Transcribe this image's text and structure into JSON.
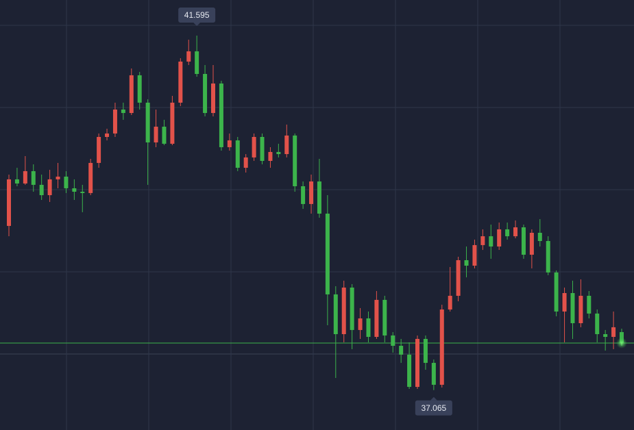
{
  "chart_data": {
    "type": "candlestick",
    "up_color": "#e2524a",
    "down_color": "#3cb44b",
    "ylim": [
      36.555,
      42.05
    ],
    "max_marker": 41.595,
    "min_marker": 37.065,
    "current_price": 37.666,
    "open": [
      39.163,
      39.758,
      39.705,
      39.863,
      39.688,
      39.556,
      39.758,
      39.793,
      39.644,
      39.6,
      39.583,
      39.968,
      40.3,
      40.344,
      40.65,
      40.606,
      41.088,
      40.738,
      40.23,
      40.431,
      40.213,
      40.738,
      41.263,
      41.394,
      41.105,
      40.606,
      40.983,
      40.169,
      40.256,
      39.906,
      40.038,
      40.3,
      39.994,
      40.108,
      40.081,
      40.318,
      39.67,
      39.443,
      39.731,
      39.32,
      38.288,
      37.78,
      38.375,
      37.833,
      37.981,
      37.745,
      38.218,
      37.763,
      37.631,
      37.518,
      37.106,
      37.719,
      37.413,
      37.133,
      38.095,
      38.27,
      38.725,
      38.655,
      38.918,
      39.031,
      38.9,
      39.119,
      39.031,
      39.145,
      38.795,
      39.075,
      38.97,
      38.568,
      38.069,
      38.305,
      37.92,
      38.27,
      38.043,
      37.78,
      37.745,
      37.806
    ],
    "high": [
      39.819,
      39.906,
      40.055,
      39.95,
      39.819,
      39.88,
      39.968,
      39.863,
      39.758,
      39.688,
      40.02,
      40.344,
      40.405,
      40.738,
      40.738,
      41.175,
      41.131,
      40.781,
      40.65,
      40.519,
      40.825,
      41.306,
      41.543,
      41.595,
      41.219,
      41.219,
      41.018,
      40.344,
      40.3,
      40.081,
      40.344,
      40.344,
      40.169,
      40.213,
      40.458,
      40.344,
      39.731,
      39.819,
      40.02,
      39.556,
      38.393,
      38.463,
      38.419,
      38.113,
      38.069,
      38.331,
      38.27,
      37.806,
      37.719,
      37.675,
      37.763,
      37.763,
      37.456,
      38.156,
      38.638,
      38.769,
      38.9,
      38.988,
      39.119,
      39.18,
      39.206,
      39.206,
      39.233,
      39.18,
      39.119,
      39.25,
      39.031,
      38.594,
      38.375,
      38.463,
      38.48,
      38.331,
      38.095,
      37.833,
      38.069,
      37.85
    ],
    "low": [
      39.031,
      39.67,
      39.688,
      39.6,
      39.495,
      39.469,
      39.644,
      39.583,
      39.495,
      39.338,
      39.556,
      39.906,
      40.256,
      40.3,
      40.519,
      40.58,
      40.65,
      39.688,
      40.169,
      40.195,
      40.195,
      40.694,
      41.219,
      41.07,
      40.563,
      40.563,
      40.125,
      40.125,
      39.863,
      39.845,
      39.994,
      39.95,
      39.906,
      40.038,
      40.038,
      39.6,
      39.381,
      39.32,
      39.268,
      37.894,
      37.22,
      37.675,
      37.588,
      37.719,
      37.675,
      37.719,
      37.675,
      37.544,
      37.413,
      37.08,
      37.08,
      37.325,
      37.065,
      37.098,
      38.069,
      38.2,
      38.506,
      38.62,
      38.856,
      38.743,
      38.856,
      38.988,
      39.005,
      38.743,
      38.62,
      38.9,
      38.533,
      38.008,
      37.675,
      37.719,
      37.868,
      37.981,
      37.675,
      37.57,
      37.588,
      37.631
    ],
    "close": [
      39.758,
      39.705,
      39.863,
      39.688,
      39.556,
      39.758,
      39.793,
      39.644,
      39.6,
      39.583,
      39.968,
      40.3,
      40.344,
      40.65,
      40.606,
      41.088,
      40.738,
      40.23,
      40.431,
      40.213,
      40.738,
      41.263,
      41.394,
      41.105,
      40.606,
      40.983,
      40.169,
      40.256,
      39.906,
      40.038,
      40.3,
      39.994,
      40.108,
      40.081,
      40.318,
      39.67,
      39.443,
      39.731,
      39.32,
      38.288,
      37.78,
      38.375,
      37.833,
      37.981,
      37.745,
      38.218,
      37.763,
      37.631,
      37.518,
      37.106,
      37.719,
      37.413,
      37.133,
      38.095,
      38.27,
      38.725,
      38.655,
      38.918,
      39.031,
      38.9,
      39.119,
      39.031,
      39.145,
      38.795,
      39.075,
      38.97,
      38.568,
      38.069,
      38.305,
      37.92,
      38.27,
      38.043,
      37.78,
      37.745,
      37.868,
      37.666
    ]
  }
}
